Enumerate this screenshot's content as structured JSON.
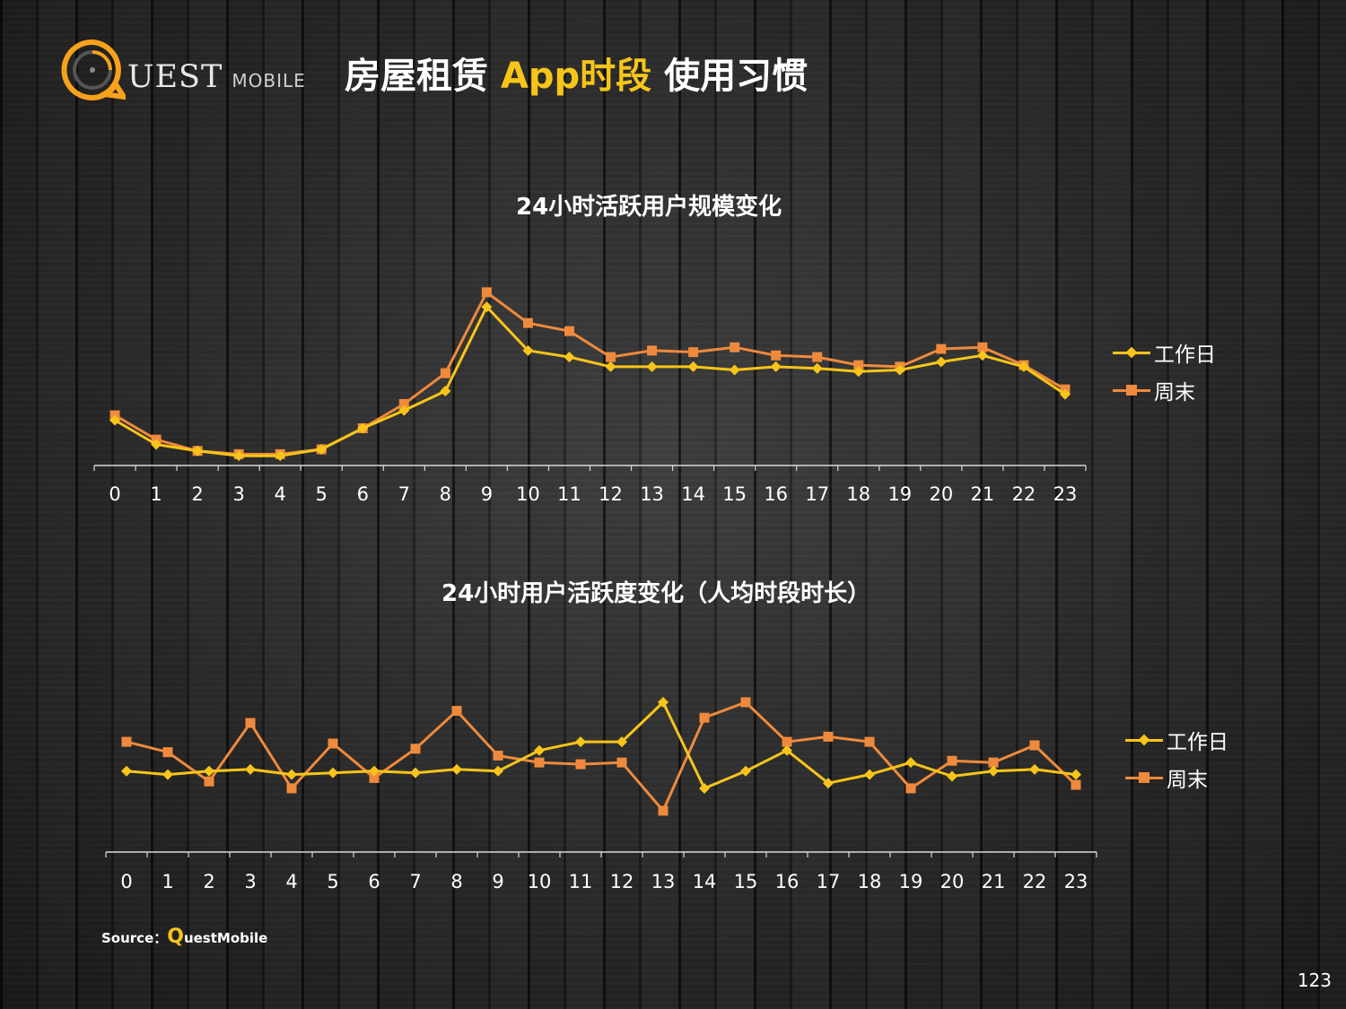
{
  "logo": {
    "text": "UEST",
    "subtext": "MOBILE"
  },
  "header": {
    "title_part1": "房屋租赁 ",
    "title_accent": "App时段",
    "title_part2": " 使用习惯"
  },
  "colors": {
    "workday": "#f7c519",
    "weekend": "#ef8a3c",
    "background": "#222222",
    "axis": "#d9d9d9"
  },
  "chart_data": [
    {
      "type": "line",
      "title": "24小时活跃用户规模变化",
      "categories": [
        "0",
        "1",
        "2",
        "3",
        "4",
        "5",
        "6",
        "7",
        "8",
        "9",
        "10",
        "11",
        "12",
        "13",
        "14",
        "15",
        "16",
        "17",
        "18",
        "19",
        "20",
        "21",
        "22",
        "23"
      ],
      "ylim": [
        0,
        100
      ],
      "grid": false,
      "legend_position": "right",
      "series": [
        {
          "name": "工作日",
          "marker": "diamond",
          "values": [
            28,
            13,
            9,
            6,
            6,
            10,
            23,
            34,
            46,
            98,
            71,
            67,
            61,
            61,
            61,
            59,
            61,
            60,
            58,
            59,
            64,
            68,
            61,
            44
          ]
        },
        {
          "name": "周末",
          "marker": "square",
          "values": [
            31,
            16,
            9,
            7,
            7,
            10,
            23,
            38,
            57,
            107,
            88,
            83,
            67,
            71,
            70,
            73,
            68,
            67,
            62,
            61,
            72,
            73,
            62,
            47
          ]
        }
      ]
    },
    {
      "type": "line",
      "title": "24小时用户活跃度变化（人均时段时长）",
      "categories": [
        "0",
        "1",
        "2",
        "3",
        "4",
        "5",
        "6",
        "7",
        "8",
        "9",
        "10",
        "11",
        "12",
        "13",
        "14",
        "15",
        "16",
        "17",
        "18",
        "19",
        "20",
        "21",
        "22",
        "23"
      ],
      "ylim": [
        0,
        100
      ],
      "grid": false,
      "legend_position": "right",
      "series": [
        {
          "name": "工作日",
          "marker": "diamond",
          "values": [
            47,
            45,
            47,
            48,
            45,
            46,
            47,
            46,
            48,
            47,
            59,
            64,
            64,
            87,
            37,
            47,
            59,
            40,
            45,
            52,
            44,
            47,
            48,
            45
          ]
        },
        {
          "name": "周末",
          "marker": "square",
          "values": [
            64,
            58,
            41,
            75,
            37,
            63,
            43,
            60,
            82,
            56,
            52,
            51,
            52,
            24,
            78,
            87,
            64,
            67,
            64,
            37,
            53,
            52,
            62,
            39
          ]
        }
      ]
    }
  ],
  "source": {
    "label": "Source：",
    "q": "Q",
    "name": "uestMobile"
  },
  "page_number": "123"
}
